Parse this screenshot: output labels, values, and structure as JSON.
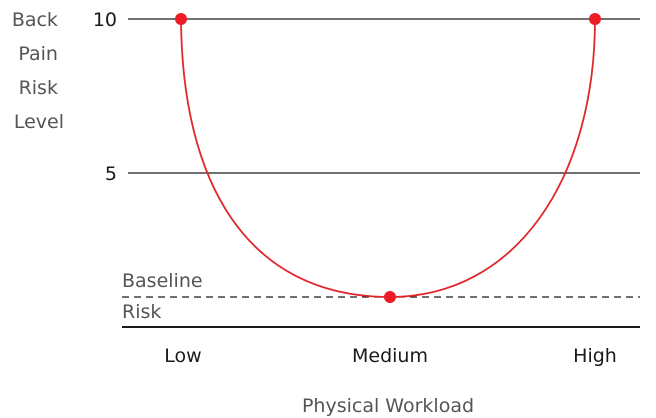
{
  "chart_data": {
    "type": "line",
    "title": "",
    "xlabel": "Physical Workload",
    "ylabel_lines": [
      "Back",
      "Pain",
      "Risk",
      "Level"
    ],
    "x_categories": [
      "Low",
      "Medium",
      "High"
    ],
    "y_ticks": [
      10,
      5
    ],
    "ylim": [
      0,
      10
    ],
    "baseline": {
      "label_lines": [
        "Baseline",
        "Risk"
      ],
      "value": 1
    },
    "series": [
      {
        "points": [
          {
            "x": "Low",
            "y": 10
          },
          {
            "x": "Medium",
            "y": 1
          },
          {
            "x": "High",
            "y": 10
          }
        ]
      }
    ],
    "grid": "horizontal",
    "colors": {
      "curve": "#e0282c",
      "marker": "#ee1c25",
      "grid": "#1a1a1a",
      "axis_text": "#1a1a1a",
      "label_text": "#555555"
    }
  }
}
